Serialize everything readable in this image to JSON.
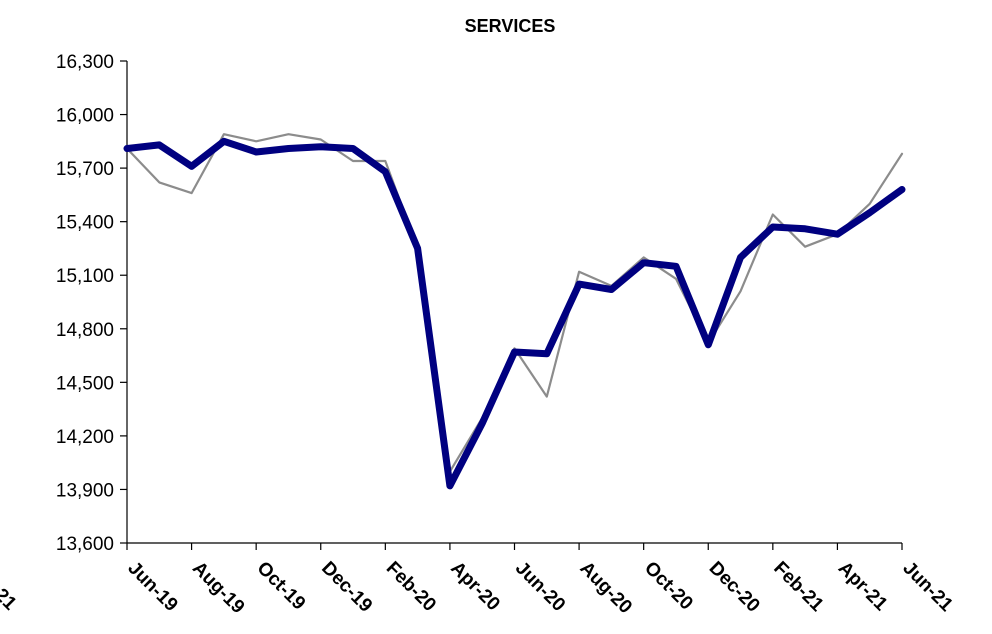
{
  "chart_data": {
    "type": "line",
    "title": "SERVICES",
    "xlabel": "",
    "ylabel": "",
    "ylim": [
      13600,
      16300
    ],
    "yticks": [
      13600,
      13900,
      14200,
      14500,
      14800,
      15100,
      15400,
      15700,
      16000,
      16300
    ],
    "ytick_labels": [
      "13,600",
      "13,900",
      "14,200",
      "14,500",
      "14,800",
      "15,100",
      "15,400",
      "15,700",
      "16,000",
      "16,300"
    ],
    "x": [
      "Jun-19",
      "Jul-19",
      "Aug-19",
      "Sep-19",
      "Oct-19",
      "Nov-19",
      "Dec-19",
      "Jan-20",
      "Feb-20",
      "Mar-20",
      "Apr-20",
      "May-20",
      "Jun-20",
      "Jul-20",
      "Aug-20",
      "Sep-20",
      "Oct-20",
      "Nov-20",
      "Dec-20",
      "Jan-21",
      "Feb-21",
      "Mar-21",
      "Apr-21",
      "May-21",
      "Jun-21"
    ],
    "xtick_labels": [
      "Jun-19",
      "Aug-19",
      "Oct-19",
      "Dec-19",
      "Feb-20",
      "Apr-20",
      "Jun-20",
      "Aug-20",
      "Oct-20",
      "Dec-20",
      "Feb-21",
      "Apr-21",
      "Jun-21"
    ],
    "xtick_partial_left": "21",
    "grid": false,
    "legend": "none",
    "series": [
      {
        "color": "#8c8c8c",
        "style": "thin",
        "values": [
          15810,
          15620,
          15560,
          15890,
          15850,
          15890,
          15860,
          15740,
          15740,
          15250,
          14000,
          14300,
          14690,
          14420,
          15120,
          15040,
          15200,
          15080,
          14720,
          15010,
          15440,
          15260,
          15330,
          15500,
          15780
        ]
      },
      {
        "color": "#000080",
        "style": "thick",
        "values": [
          15810,
          15830,
          15710,
          15850,
          15790,
          15810,
          15820,
          15810,
          15680,
          15250,
          13920,
          14270,
          14670,
          14660,
          15050,
          15020,
          15170,
          15150,
          14710,
          15200,
          15370,
          15360,
          15330,
          15450,
          15580
        ]
      }
    ]
  }
}
